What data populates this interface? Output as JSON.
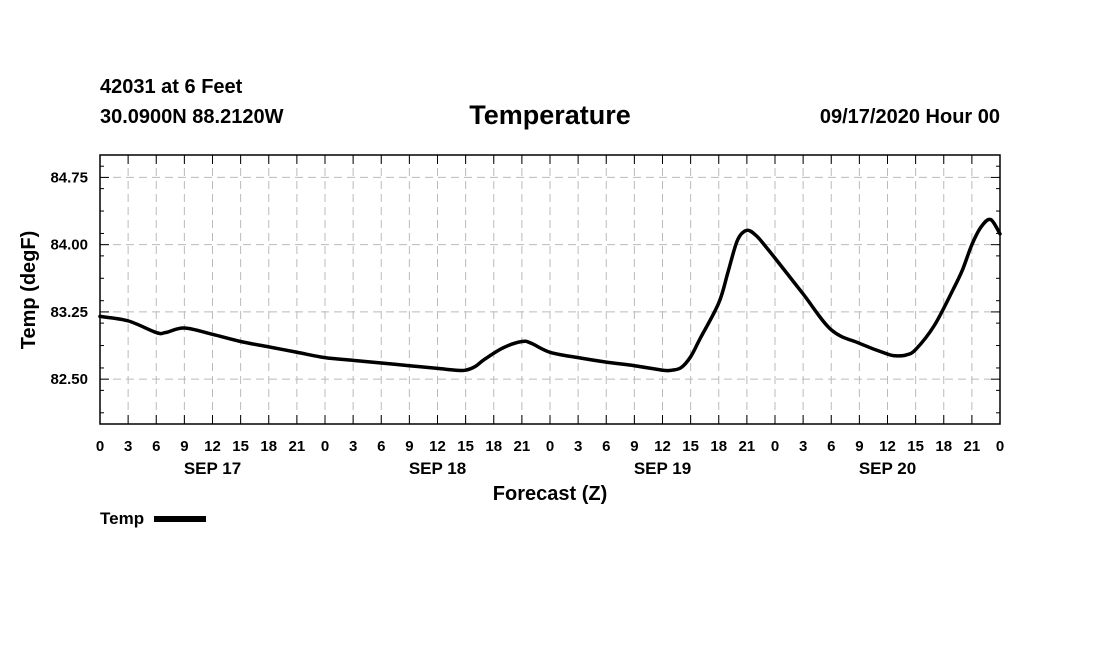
{
  "header": {
    "station": "42031 at 6 Feet",
    "coords": "30.0900N 88.2120W",
    "title": "Temperature",
    "datetime": "09/17/2020 Hour 00"
  },
  "chart_data": {
    "type": "line",
    "title": "Temperature",
    "xlabel": "Forecast (Z)",
    "ylabel": "Temp (degF)",
    "xlim": [
      0,
      96
    ],
    "ylim": [
      82.0,
      85.0
    ],
    "yticks": [
      "82.50",
      "83.25",
      "84.00",
      "84.75"
    ],
    "ytick_values": [
      82.5,
      83.25,
      84.0,
      84.75
    ],
    "xtick_labels": [
      "0",
      "3",
      "6",
      "9",
      "12",
      "15",
      "18",
      "21",
      "0",
      "3",
      "6",
      "9",
      "12",
      "15",
      "18",
      "21",
      "0",
      "3",
      "6",
      "9",
      "12",
      "15",
      "18",
      "21",
      "0",
      "3",
      "6",
      "9",
      "12",
      "15",
      "18",
      "21",
      "0"
    ],
    "day_labels": [
      {
        "label": "SEP 17",
        "hour": 12
      },
      {
        "label": "SEP 18",
        "hour": 36
      },
      {
        "label": "SEP 19",
        "hour": 60
      },
      {
        "label": "SEP 20",
        "hour": 84
      }
    ],
    "grid": true,
    "legend": "bottom-left",
    "series": [
      {
        "name": "Temp",
        "color": "#000000",
        "x": [
          0,
          3,
          6,
          7,
          9,
          12,
          15,
          18,
          21,
          24,
          27,
          30,
          33,
          36,
          38,
          39,
          40,
          41,
          43,
          45,
          46,
          48,
          51,
          54,
          57,
          60,
          61,
          62,
          63,
          64,
          66,
          67,
          68,
          69,
          70,
          71,
          72,
          75,
          78,
          81,
          84,
          85,
          86,
          87,
          89,
          91,
          92,
          93,
          94,
          95,
          96
        ],
        "values": [
          83.2,
          83.15,
          83.02,
          83.02,
          83.07,
          83.0,
          82.92,
          82.86,
          82.8,
          82.74,
          82.71,
          82.68,
          82.65,
          82.62,
          82.6,
          82.6,
          82.64,
          82.72,
          82.85,
          82.92,
          82.9,
          82.8,
          82.74,
          82.69,
          82.65,
          82.6,
          82.6,
          82.63,
          82.75,
          82.95,
          83.35,
          83.7,
          84.05,
          84.16,
          84.1,
          83.98,
          83.85,
          83.45,
          83.05,
          82.9,
          82.78,
          82.76,
          82.77,
          82.83,
          83.1,
          83.5,
          83.72,
          84.0,
          84.2,
          84.28,
          84.12
        ]
      }
    ]
  },
  "legend_label": "Temp"
}
